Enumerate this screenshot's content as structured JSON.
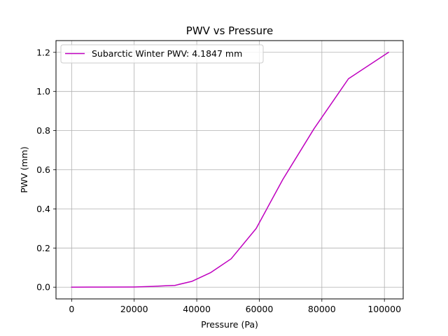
{
  "chart_data": {
    "type": "line",
    "title": "PWV vs Pressure",
    "xlabel": "Pressure (Pa)",
    "ylabel": "PWV (mm)",
    "xlim": [
      -5000,
      106000
    ],
    "ylim": [
      -0.06,
      1.26
    ],
    "xticks": [
      0,
      20000,
      40000,
      60000,
      80000,
      100000
    ],
    "xtick_labels": [
      "0",
      "20000",
      "40000",
      "60000",
      "80000",
      "100000"
    ],
    "yticks": [
      0.0,
      0.2,
      0.4,
      0.6,
      0.8,
      1.0,
      1.2
    ],
    "ytick_labels": [
      "0.0",
      "0.2",
      "0.4",
      "0.6",
      "0.8",
      "1.0",
      "1.2"
    ],
    "grid": true,
    "legend_position": "top-left",
    "series": [
      {
        "name": "Subarctic Winter PWV: 4.1847 mm",
        "color": "#bf00bf",
        "x": [
          0,
          10000,
          20000,
          22500,
          26000,
          30000,
          33000,
          38500,
          44500,
          51000,
          59000,
          67500,
          77500,
          88500,
          101300
        ],
        "y": [
          0.0,
          0.0005,
          0.001,
          0.002,
          0.004,
          0.007,
          0.009,
          0.03,
          0.075,
          0.145,
          0.3,
          0.55,
          0.81,
          1.065,
          1.2
        ]
      }
    ]
  }
}
